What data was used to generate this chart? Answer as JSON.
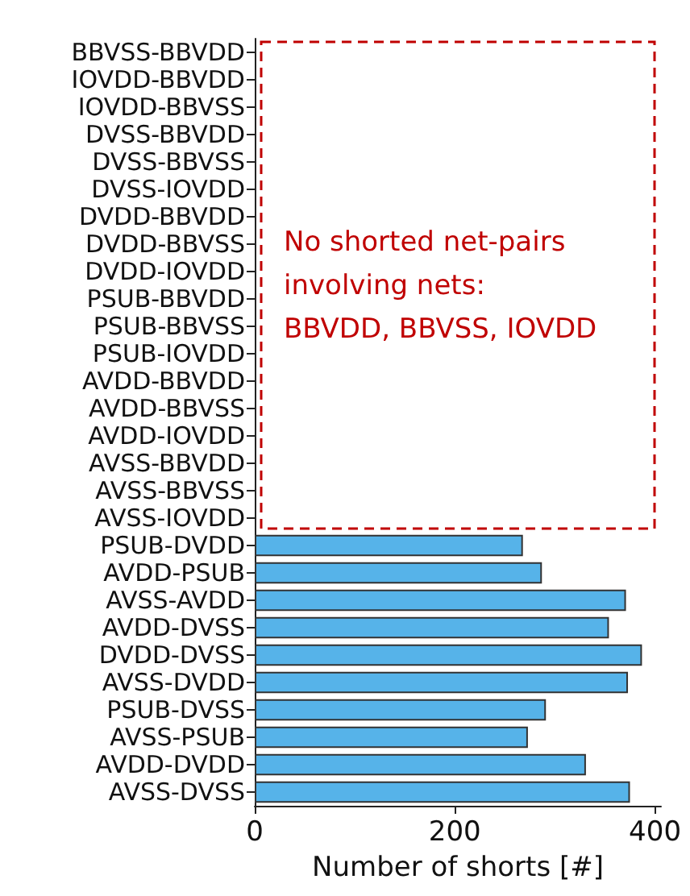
{
  "chart_data": {
    "type": "bar",
    "orientation": "horizontal",
    "xlabel": "Number of shorts [#]",
    "categories": [
      "BBVSS-BBVDD",
      "IOVDD-BBVDD",
      "IOVDD-BBVSS",
      "DVSS-BBVDD",
      "DVSS-BBVSS",
      "DVSS-IOVDD",
      "DVDD-BBVDD",
      "DVDD-BBVSS",
      "DVDD-IOVDD",
      "PSUB-BBVDD",
      "PSUB-BBVSS",
      "PSUB-IOVDD",
      "AVDD-BBVDD",
      "AVDD-BBVSS",
      "AVDD-IOVDD",
      "AVSS-BBVDD",
      "AVSS-BBVSS",
      "AVSS-IOVDD",
      "PSUB-DVDD",
      "AVDD-PSUB",
      "AVSS-AVDD",
      "AVDD-DVSS",
      "DVDD-DVSS",
      "AVSS-DVDD",
      "PSUB-DVSS",
      "AVSS-PSUB",
      "AVDD-DVDD",
      "AVSS-DVSS"
    ],
    "values": [
      0,
      0,
      0,
      0,
      0,
      0,
      0,
      0,
      0,
      0,
      0,
      0,
      0,
      0,
      0,
      0,
      0,
      0,
      268,
      287,
      371,
      354,
      387,
      373,
      291,
      273,
      331,
      375
    ],
    "color": "#56b3e9",
    "xlim": [
      0,
      406
    ],
    "xticks": [
      0,
      200,
      400
    ],
    "grid": false,
    "annotations": [
      "No shorted net-pairs involving nets: BBVDD, BBVSS, IOVDD"
    ]
  }
}
